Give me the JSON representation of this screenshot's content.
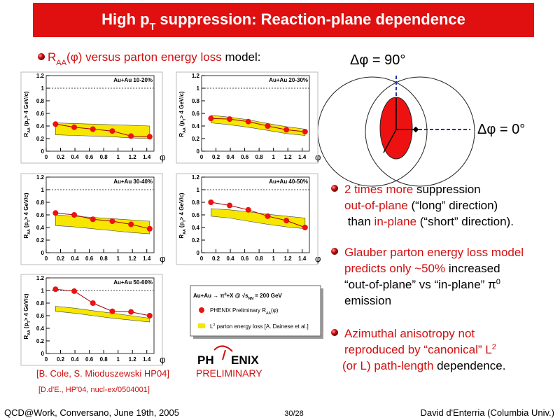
{
  "title": [
    {
      "text": "High p"
    },
    {
      "text": "T",
      "shift": "sub"
    },
    {
      "text": " suppression: Reaction-plane dependence"
    }
  ],
  "subtitle": [
    {
      "text": "R",
      "color": "#d01010"
    },
    {
      "text": "AA",
      "color": "#d01010",
      "shift": "sub"
    },
    {
      "text": "(φ) versus parton energy loss",
      "color": "#d01010"
    },
    {
      "text": " model:"
    }
  ],
  "dphi90": [
    {
      "text": "Δφ = 90°"
    }
  ],
  "dphi0": [
    {
      "text": "Δφ = 0°"
    }
  ],
  "bullets": [
    [
      [
        {
          "text": "2 times more",
          "color": "#d01010"
        },
        {
          "text": " suppression"
        }
      ],
      [
        {
          "text": "out-of-plane",
          "color": "#d01010"
        },
        {
          "text": " (“long” direction)"
        }
      ],
      [
        {
          "text": " than "
        },
        {
          "text": "in-plane",
          "color": "#d01010"
        },
        {
          "text": " (“short” direction)."
        }
      ]
    ],
    [
      [
        {
          "text": "Glauber parton energy loss model",
          "color": "#d01010"
        }
      ],
      [
        {
          "text": "predicts only ~50%",
          "color": "#d01010"
        },
        {
          "text": " increased"
        }
      ],
      [
        {
          "text": "“out-of-plane” vs “in-plane” π"
        },
        {
          "text": "0",
          "shift": "sup"
        }
      ],
      [
        {
          "text": "emission"
        }
      ]
    ],
    [
      [
        {
          "text": "Azimuthal anisotropy not",
          "color": "#d01010"
        }
      ],
      [
        {
          "text": "reproduced by “canonical” L",
          "color": "#d01010"
        },
        {
          "text": "2",
          "color": "#d01010",
          "shift": "sup"
        }
      ],
      [
        {
          "text": "(or L) path-length",
          "color": "#d01010"
        },
        {
          "text": " dependence."
        }
      ]
    ]
  ],
  "ref1": [
    {
      "text": "[B. Cole, S. Mioduszewski HP04]",
      "color": "#d01010"
    }
  ],
  "ref2": [
    {
      "text": "[D.d'E., HP'04, nucl-ex/0504001]",
      "color": "#d01010"
    }
  ],
  "legend": {
    "header": [
      {
        "text": "Au+Au → π"
      },
      {
        "text": "0",
        "shift": "sup"
      },
      {
        "text": "+X @ √s"
      },
      {
        "text": "NN",
        "shift": "sub"
      },
      {
        "text": " = 200 GeV"
      }
    ],
    "points": [
      {
        "text": "PHENIX Preliminary R"
      },
      {
        "text": "AA",
        "shift": "sub"
      },
      {
        "text": "(φ)"
      }
    ],
    "band": [
      {
        "text": "L"
      },
      {
        "text": "2",
        "shift": "sup"
      },
      {
        "text": " parton energy loss [A. Dainese et al.]"
      }
    ]
  },
  "logo": {
    "left": "PH",
    "right": "ENIX",
    "sub": "PRELIMINARY"
  },
  "footer": {
    "left": "QCD@Work, Conversano, June 19th, 2005",
    "center": "30/28",
    "right": "David d'Enterria (Columbia Univ.)"
  },
  "chart_data": [
    {
      "type": "scatter",
      "label": "Au+Au 10-20%",
      "x": [
        0.13,
        0.39,
        0.65,
        0.92,
        1.18,
        1.44
      ],
      "values": [
        0.43,
        0.38,
        0.35,
        0.32,
        0.24,
        0.23
      ],
      "band_high": [
        0.45,
        0.44,
        0.43,
        0.42,
        0.41,
        0.4
      ],
      "band_low": [
        0.26,
        0.25,
        0.24,
        0.23,
        0.21,
        0.2
      ]
    },
    {
      "type": "scatter",
      "label": "Au+Au 20-30%",
      "x": [
        0.13,
        0.39,
        0.65,
        0.92,
        1.18,
        1.44
      ],
      "values": [
        0.52,
        0.51,
        0.47,
        0.4,
        0.34,
        0.31
      ],
      "band_high": [
        0.57,
        0.54,
        0.5,
        0.44,
        0.39,
        0.35
      ],
      "band_low": [
        0.45,
        0.42,
        0.38,
        0.33,
        0.28,
        0.25
      ]
    },
    {
      "type": "scatter",
      "label": "Au+Au 30-40%",
      "x": [
        0.13,
        0.39,
        0.65,
        0.92,
        1.18,
        1.44
      ],
      "values": [
        0.63,
        0.6,
        0.53,
        0.5,
        0.45,
        0.38
      ],
      "band_high": [
        0.6,
        0.58,
        0.56,
        0.54,
        0.52,
        0.5
      ],
      "band_low": [
        0.43,
        0.41,
        0.38,
        0.35,
        0.32,
        0.3
      ]
    },
    {
      "type": "scatter",
      "label": "Au+Au 40-50%",
      "x": [
        0.13,
        0.39,
        0.65,
        0.92,
        1.18,
        1.44
      ],
      "values": [
        0.8,
        0.75,
        0.68,
        0.58,
        0.51,
        0.4
      ],
      "band_high": [
        0.7,
        0.68,
        0.65,
        0.61,
        0.58,
        0.55
      ],
      "band_low": [
        0.58,
        0.55,
        0.5,
        0.45,
        0.41,
        0.38
      ]
    },
    {
      "type": "scatter",
      "label": "Au+Au 50-60%",
      "x": [
        0.13,
        0.39,
        0.65,
        0.92,
        1.18,
        1.44
      ],
      "values": [
        1.02,
        0.99,
        0.8,
        0.67,
        0.66,
        0.6
      ],
      "band_high": [
        0.75,
        0.72,
        0.68,
        0.64,
        0.6,
        0.56
      ],
      "band_low": [
        0.67,
        0.64,
        0.6,
        0.56,
        0.53,
        0.5
      ]
    }
  ],
  "axes": {
    "xlim": [
      0,
      1.5
    ],
    "xticks": [
      0,
      0.2,
      0.4,
      0.6,
      0.8,
      1,
      1.2,
      1.4
    ],
    "ylim": [
      0,
      1.2
    ],
    "yticks": [
      0,
      0.2,
      0.4,
      0.6,
      0.8,
      1,
      1.2
    ],
    "reference_line": 1,
    "x_label": "φ",
    "y_label": [
      {
        "text": "R"
      },
      {
        "text": "AA",
        "shift": "sub"
      },
      {
        "text": " (p"
      },
      {
        "text": "T",
        "shift": "sub"
      },
      {
        "text": "> 4 GeV/c)"
      }
    ],
    "point_color": "#ee1111",
    "band_color": "#f6e600",
    "line_color": "#a00000"
  }
}
